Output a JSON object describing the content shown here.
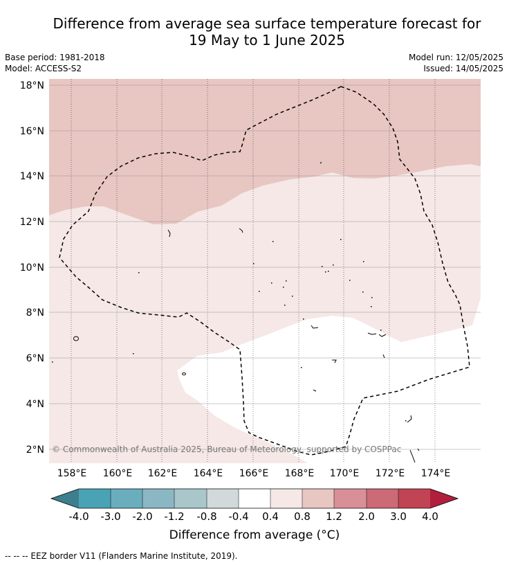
{
  "title": {
    "line1": "Difference from average sea surface temperature forecast for",
    "line2": "19 May to 1 June 2025"
  },
  "meta": {
    "base_period": "Base period: 1981-2018",
    "model": "Model: ACCESS-S2",
    "model_run": "Model run: 12/05/2025",
    "issued": "Issued: 14/05/2025"
  },
  "map": {
    "lon_range": [
      157,
      175.8
    ],
    "lat_range": [
      1.4,
      18.3
    ],
    "lon_ticks": [
      "158°E",
      "160°E",
      "162°E",
      "164°E",
      "166°E",
      "168°E",
      "170°E",
      "172°E",
      "174°E"
    ],
    "lat_ticks": [
      "2°N",
      "4°N",
      "6°N",
      "8°N",
      "10°N",
      "12°N",
      "14°N",
      "16°N",
      "18°N"
    ],
    "copyright": "© Commonwealth of Australia 2025, Bureau of Meteorology, supported by COSPPac",
    "zones": [
      {
        "range": "0.8 to 1.2",
        "color": "#e8c6c2"
      },
      {
        "range": "0.4 to 0.8",
        "color": "#f5e8e6"
      },
      {
        "range": "-0.4 to 0.4",
        "color": "#ffffff"
      }
    ],
    "eez_border_color": "#000000"
  },
  "colorbar": {
    "labels": [
      "-4.0",
      "-3.0",
      "-2.0",
      "-1.2",
      "-0.8",
      "-0.4",
      "0.4",
      "0.8",
      "1.2",
      "2.0",
      "3.0",
      "4.0"
    ],
    "colors": [
      "#3d7f8c",
      "#4aa3b5",
      "#6aaebe",
      "#8ab7c3",
      "#a9c6cb",
      "#d2d9db",
      "#ffffff",
      "#f5e8e6",
      "#e8c6c2",
      "#d98f97",
      "#cc6a76",
      "#c14454",
      "#b11f3c"
    ],
    "title": "Difference from average (°C)"
  },
  "footer": "--  --  -- EEZ border V11 (Flanders Marine Institute, 2019)."
}
